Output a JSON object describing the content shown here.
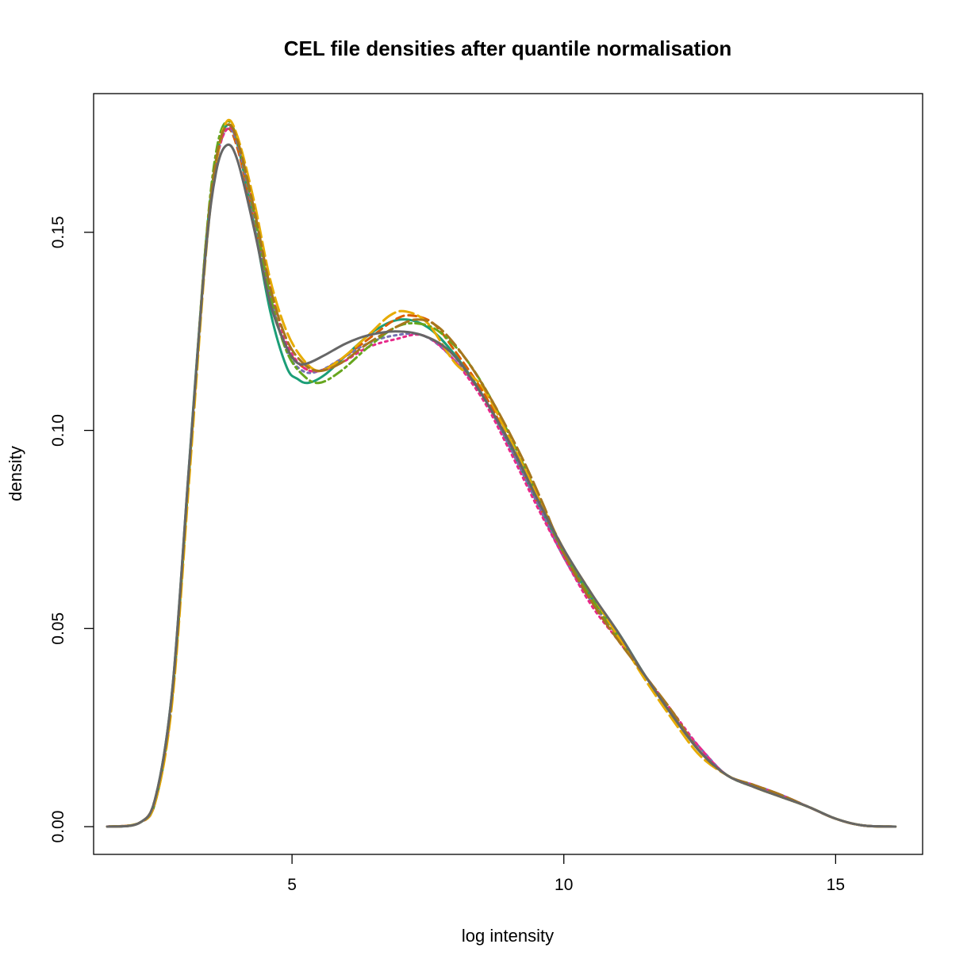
{
  "chart_data": {
    "type": "line",
    "title": "CEL file densities after quantile normalisation",
    "xlabel": "log intensity",
    "ylabel": "density",
    "xlim": [
      1.35,
      16.6
    ],
    "ylim": [
      -0.007,
      0.185
    ],
    "x_ticks": [
      5,
      10,
      15
    ],
    "x_tick_labels": [
      "5",
      "10",
      "15"
    ],
    "y_ticks": [
      0.0,
      0.05,
      0.1,
      0.15
    ],
    "y_tick_labels": [
      "0.00",
      "0.05",
      "0.10",
      "0.15"
    ],
    "grid": false,
    "legend": "none",
    "series": [
      {
        "color": "#1B9E77",
        "dash": "solid",
        "points": [
          [
            1.6,
            0.0
          ],
          [
            2.2,
            0.001
          ],
          [
            2.5,
            0.008
          ],
          [
            2.8,
            0.035
          ],
          [
            3.1,
            0.09
          ],
          [
            3.4,
            0.145
          ],
          [
            3.6,
            0.168
          ],
          [
            3.8,
            0.177
          ],
          [
            4.0,
            0.172
          ],
          [
            4.3,
            0.152
          ],
          [
            4.6,
            0.13
          ],
          [
            4.9,
            0.116
          ],
          [
            5.1,
            0.113
          ],
          [
            5.3,
            0.112
          ],
          [
            5.6,
            0.114
          ],
          [
            6.0,
            0.119
          ],
          [
            6.5,
            0.125
          ],
          [
            7.0,
            0.128
          ],
          [
            7.5,
            0.126
          ],
          [
            8.0,
            0.119
          ],
          [
            8.5,
            0.109
          ],
          [
            9.0,
            0.096
          ],
          [
            9.5,
            0.082
          ],
          [
            10.0,
            0.069
          ],
          [
            10.5,
            0.058
          ],
          [
            11.0,
            0.049
          ],
          [
            11.5,
            0.038
          ],
          [
            12.0,
            0.028
          ],
          [
            12.5,
            0.019
          ],
          [
            13.0,
            0.013
          ],
          [
            13.5,
            0.01
          ],
          [
            14.0,
            0.0075
          ],
          [
            14.5,
            0.005
          ],
          [
            15.0,
            0.002
          ],
          [
            15.5,
            0.0003
          ],
          [
            16.1,
            0.0
          ]
        ]
      },
      {
        "color": "#D95F02",
        "dash": "10,6",
        "points": [
          [
            1.6,
            0.0
          ],
          [
            2.2,
            0.001
          ],
          [
            2.5,
            0.007
          ],
          [
            2.8,
            0.033
          ],
          [
            3.1,
            0.088
          ],
          [
            3.4,
            0.143
          ],
          [
            3.6,
            0.167
          ],
          [
            3.8,
            0.176
          ],
          [
            4.0,
            0.171
          ],
          [
            4.3,
            0.153
          ],
          [
            4.6,
            0.133
          ],
          [
            4.9,
            0.121
          ],
          [
            5.2,
            0.116
          ],
          [
            5.5,
            0.115
          ],
          [
            5.9,
            0.118
          ],
          [
            6.4,
            0.123
          ],
          [
            6.9,
            0.128
          ],
          [
            7.2,
            0.129
          ],
          [
            7.6,
            0.127
          ],
          [
            8.0,
            0.12
          ],
          [
            8.5,
            0.11
          ],
          [
            9.0,
            0.097
          ],
          [
            9.5,
            0.082
          ],
          [
            10.0,
            0.068
          ],
          [
            10.5,
            0.057
          ],
          [
            11.0,
            0.048
          ],
          [
            11.5,
            0.038
          ],
          [
            12.0,
            0.028
          ],
          [
            12.5,
            0.019
          ],
          [
            13.0,
            0.013
          ],
          [
            13.5,
            0.01
          ],
          [
            14.0,
            0.0075
          ],
          [
            14.5,
            0.005
          ],
          [
            15.0,
            0.002
          ],
          [
            15.5,
            0.0003
          ],
          [
            16.1,
            0.0
          ]
        ]
      },
      {
        "color": "#7570B3",
        "dash": "3,5",
        "points": [
          [
            1.6,
            0.0
          ],
          [
            2.2,
            0.001
          ],
          [
            2.5,
            0.008
          ],
          [
            2.8,
            0.034
          ],
          [
            3.1,
            0.089
          ],
          [
            3.4,
            0.144
          ],
          [
            3.6,
            0.167
          ],
          [
            3.8,
            0.176
          ],
          [
            4.0,
            0.172
          ],
          [
            4.3,
            0.154
          ],
          [
            4.6,
            0.134
          ],
          [
            4.9,
            0.12
          ],
          [
            5.2,
            0.115
          ],
          [
            5.5,
            0.115
          ],
          [
            5.9,
            0.118
          ],
          [
            6.4,
            0.122
          ],
          [
            6.9,
            0.124
          ],
          [
            7.4,
            0.124
          ],
          [
            7.9,
            0.119
          ],
          [
            8.5,
            0.109
          ],
          [
            9.0,
            0.096
          ],
          [
            9.5,
            0.082
          ],
          [
            10.0,
            0.068
          ],
          [
            10.5,
            0.057
          ],
          [
            11.0,
            0.048
          ],
          [
            11.5,
            0.038
          ],
          [
            12.0,
            0.028
          ],
          [
            12.5,
            0.02
          ],
          [
            13.0,
            0.013
          ],
          [
            13.5,
            0.0105
          ],
          [
            14.0,
            0.008
          ],
          [
            14.5,
            0.005
          ],
          [
            15.0,
            0.002
          ],
          [
            15.5,
            0.0003
          ],
          [
            16.1,
            0.0
          ]
        ]
      },
      {
        "color": "#E7298A",
        "dash": "3,5",
        "points": [
          [
            1.6,
            0.0
          ],
          [
            2.2,
            0.001
          ],
          [
            2.5,
            0.007
          ],
          [
            2.8,
            0.033
          ],
          [
            3.1,
            0.088
          ],
          [
            3.4,
            0.143
          ],
          [
            3.6,
            0.167
          ],
          [
            3.8,
            0.176
          ],
          [
            4.0,
            0.173
          ],
          [
            4.3,
            0.156
          ],
          [
            4.6,
            0.136
          ],
          [
            4.9,
            0.122
          ],
          [
            5.2,
            0.116
          ],
          [
            5.5,
            0.115
          ],
          [
            5.9,
            0.117
          ],
          [
            6.4,
            0.121
          ],
          [
            6.9,
            0.123
          ],
          [
            7.4,
            0.124
          ],
          [
            7.9,
            0.119
          ],
          [
            8.5,
            0.108
          ],
          [
            9.0,
            0.095
          ],
          [
            9.5,
            0.081
          ],
          [
            10.0,
            0.068
          ],
          [
            10.5,
            0.056
          ],
          [
            11.0,
            0.047
          ],
          [
            11.5,
            0.038
          ],
          [
            12.0,
            0.029
          ],
          [
            12.5,
            0.02
          ],
          [
            13.0,
            0.013
          ],
          [
            13.5,
            0.0105
          ],
          [
            14.0,
            0.008
          ],
          [
            14.5,
            0.005
          ],
          [
            15.0,
            0.002
          ],
          [
            15.5,
            0.0003
          ],
          [
            16.1,
            0.0
          ]
        ]
      },
      {
        "color": "#66A61E",
        "dash": "12,5,3,5",
        "points": [
          [
            1.6,
            0.0
          ],
          [
            2.2,
            0.001
          ],
          [
            2.5,
            0.007
          ],
          [
            2.8,
            0.033
          ],
          [
            3.1,
            0.088
          ],
          [
            3.4,
            0.145
          ],
          [
            3.6,
            0.17
          ],
          [
            3.8,
            0.178
          ],
          [
            4.0,
            0.173
          ],
          [
            4.3,
            0.155
          ],
          [
            4.6,
            0.134
          ],
          [
            4.9,
            0.12
          ],
          [
            5.2,
            0.114
          ],
          [
            5.5,
            0.112
          ],
          [
            5.9,
            0.115
          ],
          [
            6.4,
            0.121
          ],
          [
            6.9,
            0.126
          ],
          [
            7.3,
            0.127
          ],
          [
            7.7,
            0.125
          ],
          [
            8.2,
            0.118
          ],
          [
            8.7,
            0.107
          ],
          [
            9.2,
            0.093
          ],
          [
            9.6,
            0.081
          ],
          [
            10.0,
            0.069
          ],
          [
            10.5,
            0.058
          ],
          [
            11.0,
            0.048
          ],
          [
            11.5,
            0.038
          ],
          [
            12.0,
            0.028
          ],
          [
            12.5,
            0.019
          ],
          [
            13.0,
            0.013
          ],
          [
            13.5,
            0.01
          ],
          [
            14.0,
            0.0075
          ],
          [
            14.5,
            0.005
          ],
          [
            15.0,
            0.002
          ],
          [
            15.5,
            0.0003
          ],
          [
            16.1,
            0.0
          ]
        ]
      },
      {
        "color": "#E6AB02",
        "dash": "18,6",
        "points": [
          [
            1.6,
            0.0
          ],
          [
            2.2,
            0.001
          ],
          [
            2.5,
            0.007
          ],
          [
            2.8,
            0.032
          ],
          [
            3.1,
            0.086
          ],
          [
            3.4,
            0.142
          ],
          [
            3.6,
            0.167
          ],
          [
            3.8,
            0.178
          ],
          [
            4.0,
            0.174
          ],
          [
            4.3,
            0.158
          ],
          [
            4.6,
            0.138
          ],
          [
            4.9,
            0.125
          ],
          [
            5.2,
            0.118
          ],
          [
            5.5,
            0.115
          ],
          [
            5.9,
            0.118
          ],
          [
            6.4,
            0.124
          ],
          [
            6.8,
            0.129
          ],
          [
            7.1,
            0.13
          ],
          [
            7.5,
            0.127
          ],
          [
            8.0,
            0.117
          ],
          [
            8.5,
            0.111
          ],
          [
            9.0,
            0.098
          ],
          [
            9.5,
            0.084
          ],
          [
            10.0,
            0.07
          ],
          [
            10.5,
            0.059
          ],
          [
            11.0,
            0.048
          ],
          [
            11.5,
            0.037
          ],
          [
            12.0,
            0.027
          ],
          [
            12.5,
            0.018
          ],
          [
            13.0,
            0.013
          ],
          [
            13.5,
            0.01
          ],
          [
            14.0,
            0.0075
          ],
          [
            14.5,
            0.005
          ],
          [
            15.0,
            0.002
          ],
          [
            15.5,
            0.0003
          ],
          [
            16.1,
            0.0
          ]
        ]
      },
      {
        "color": "#A6761D",
        "dash": "18,6",
        "points": [
          [
            1.6,
            0.0
          ],
          [
            2.2,
            0.001
          ],
          [
            2.5,
            0.008
          ],
          [
            2.8,
            0.034
          ],
          [
            3.1,
            0.089
          ],
          [
            3.4,
            0.144
          ],
          [
            3.6,
            0.168
          ],
          [
            3.8,
            0.177
          ],
          [
            4.0,
            0.173
          ],
          [
            4.3,
            0.156
          ],
          [
            4.6,
            0.136
          ],
          [
            4.9,
            0.123
          ],
          [
            5.2,
            0.117
          ],
          [
            5.5,
            0.115
          ],
          [
            5.9,
            0.117
          ],
          [
            6.4,
            0.122
          ],
          [
            6.9,
            0.126
          ],
          [
            7.3,
            0.128
          ],
          [
            7.7,
            0.126
          ],
          [
            8.2,
            0.118
          ],
          [
            8.7,
            0.107
          ],
          [
            9.2,
            0.094
          ],
          [
            9.6,
            0.082
          ],
          [
            10.0,
            0.069
          ],
          [
            10.5,
            0.057
          ],
          [
            11.0,
            0.047
          ],
          [
            11.5,
            0.038
          ],
          [
            12.0,
            0.029
          ],
          [
            12.5,
            0.019
          ],
          [
            13.0,
            0.013
          ],
          [
            13.5,
            0.0105
          ],
          [
            14.0,
            0.008
          ],
          [
            14.5,
            0.005
          ],
          [
            15.0,
            0.002
          ],
          [
            15.5,
            0.0003
          ],
          [
            16.1,
            0.0
          ]
        ]
      },
      {
        "color": "#666666",
        "dash": "solid",
        "points": [
          [
            1.6,
            0.0
          ],
          [
            2.2,
            0.001
          ],
          [
            2.5,
            0.008
          ],
          [
            2.8,
            0.035
          ],
          [
            3.1,
            0.09
          ],
          [
            3.4,
            0.143
          ],
          [
            3.6,
            0.165
          ],
          [
            3.8,
            0.172
          ],
          [
            4.0,
            0.168
          ],
          [
            4.3,
            0.151
          ],
          [
            4.6,
            0.132
          ],
          [
            4.9,
            0.121
          ],
          [
            5.1,
            0.117
          ],
          [
            5.3,
            0.117
          ],
          [
            5.6,
            0.119
          ],
          [
            6.0,
            0.122
          ],
          [
            6.4,
            0.124
          ],
          [
            6.9,
            0.125
          ],
          [
            7.4,
            0.124
          ],
          [
            7.9,
            0.12
          ],
          [
            8.4,
            0.111
          ],
          [
            9.0,
            0.097
          ],
          [
            9.5,
            0.083
          ],
          [
            10.0,
            0.07
          ],
          [
            10.5,
            0.059
          ],
          [
            11.0,
            0.049
          ],
          [
            11.5,
            0.038
          ],
          [
            12.0,
            0.028
          ],
          [
            12.5,
            0.019
          ],
          [
            13.0,
            0.013
          ],
          [
            13.5,
            0.01
          ],
          [
            14.0,
            0.0075
          ],
          [
            14.5,
            0.005
          ],
          [
            15.0,
            0.002
          ],
          [
            15.5,
            0.0003
          ],
          [
            16.1,
            0.0
          ]
        ]
      }
    ]
  }
}
